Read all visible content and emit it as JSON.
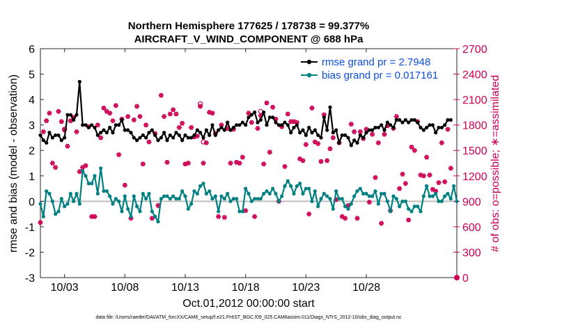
{
  "chart_data": {
    "type": "line",
    "title": "Northern Hemisphere 177625 / 178738 = 99.377%",
    "subtitle": "AIRCRAFT_V_WIND_COMPONENT @ 688 hPa",
    "xlabel": "Oct.01,2012 00:00:00 start",
    "ylabel": "rmse and bias (model - observation)",
    "y2label": "# of obs: o=possible; ∗=assimilated",
    "footnote": "data file: /Users/raeder/DAI/ATM_forcXX/CAM6_setup/f.e21.FHIST_BGC.f09_025.CAM6assim.011/Diags_NTrS_2012-10/obs_diag_output.nc",
    "xlim": [
      1.0,
      35.5
    ],
    "ylim": [
      -3,
      6
    ],
    "y2lim": [
      0,
      2700
    ],
    "x_ticks": [
      3,
      8,
      13,
      18,
      23,
      28
    ],
    "x_tick_labels": [
      "10/03",
      "10/08",
      "10/13",
      "10/18",
      "10/23",
      "10/28"
    ],
    "y_ticks": [
      -3,
      -2,
      -1,
      0,
      1,
      2,
      3,
      4,
      5,
      6
    ],
    "y2_ticks": [
      0,
      300,
      600,
      900,
      1200,
      1500,
      1800,
      2100,
      2400,
      2700
    ],
    "colors": {
      "rmse": "#000000",
      "bias": "#008080",
      "obs": "#cc0052",
      "zero": "#bdbdbd"
    },
    "series": [
      {
        "name": "rmse grand pr = 2.7948",
        "key": "rmse",
        "x_start": 1.0,
        "x_step": 0.25,
        "values": [
          2.6,
          2.4,
          2.3,
          2.7,
          2.5,
          2.6,
          2.6,
          2.4,
          2.5,
          3.4,
          3.4,
          3.2,
          3.4,
          4.7,
          3.0,
          3.0,
          2.9,
          3.0,
          2.9,
          2.6,
          2.7,
          2.8,
          2.7,
          2.9,
          2.7,
          3.0,
          3.0,
          3.2,
          2.8,
          2.8,
          2.7,
          2.5,
          2.4,
          2.5,
          2.6,
          2.5,
          2.7,
          2.8,
          2.6,
          2.4,
          2.5,
          2.7,
          2.4,
          2.6,
          2.5,
          2.7,
          2.6,
          2.4,
          2.6,
          2.5,
          2.5,
          2.6,
          2.8,
          2.7,
          2.5,
          2.8,
          2.6,
          3.0,
          2.6,
          2.8,
          2.9,
          2.8,
          3.1,
          2.8,
          2.9,
          3.0,
          3.0,
          3.1,
          3.0,
          3.3,
          3.4,
          3.5,
          3.1,
          3.2,
          3.5,
          3.0,
          3.3,
          3.3,
          3.1,
          3.0,
          3.0,
          3.1,
          3.0,
          2.7,
          2.9,
          3.0,
          2.7,
          2.8,
          2.6,
          2.9,
          2.7,
          2.8,
          2.6,
          2.5,
          3.3,
          2.8,
          3.7,
          2.7,
          2.8,
          2.3,
          2.6,
          2.6,
          2.5,
          2.2,
          2.4,
          2.3,
          2.6,
          2.5,
          2.7,
          2.8,
          2.8,
          2.9,
          2.9,
          3.0,
          2.8,
          3.1,
          3.0,
          2.9,
          3.2,
          3.2,
          3.1,
          3.2,
          3.1,
          3.2,
          3.2,
          3.1,
          2.9,
          2.8,
          2.9,
          3.0,
          3.0,
          2.7,
          2.9,
          2.9,
          3.0,
          3.2,
          3.2
        ]
      },
      {
        "name": "bias grand pr = 0.017161",
        "key": "bias",
        "x_start": 1.0,
        "x_step": 0.25,
        "values": [
          -0.1,
          -0.6,
          0.4,
          0.3,
          0.0,
          -0.5,
          -0.4,
          0.1,
          -0.2,
          -0.1,
          0.3,
          0.0,
          0.3,
          -0.1,
          1.2,
          1.0,
          0.7,
          0.7,
          1.0,
          0.3,
          1.3,
          0.4,
          0.4,
          0.2,
          -0.1,
          0.1,
          0.0,
          -0.4,
          0.2,
          -0.3,
          -0.6,
          0.2,
          -0.2,
          -0.4,
          0.3,
          0.1,
          0.3,
          -0.4,
          -0.6,
          -0.8,
          0.1,
          0.2,
          0.2,
          0.1,
          0.2,
          0.1,
          0.1,
          0.4,
          0.2,
          -0.3,
          -0.1,
          0.4,
          0.3,
          0.6,
          0.7,
          0.3,
          0.4,
          0.1,
          0.2,
          -0.4,
          0.2,
          0.1,
          0.3,
          0.0,
          0.1,
          0.1,
          -0.4,
          -0.4,
          0.5,
          0.3,
          0.0,
          0.1,
          0.1,
          0.1,
          0.3,
          0.4,
          0.3,
          0.5,
          0.3,
          0.0,
          0.2,
          0.6,
          0.8,
          0.6,
          0.3,
          0.6,
          0.7,
          0.3,
          0.5,
          0.5,
          0.0,
          0.4,
          -0.2,
          0.1,
          0.3,
          0.2,
          0.1,
          -0.3,
          0.4,
          0.1,
          0.1,
          -0.2,
          -0.3,
          -0.1,
          0.2,
          0.4,
          0.5,
          0.3,
          0.3,
          0.2,
          0.2,
          0.4,
          -0.1,
          0.3,
          0.3,
          0.0,
          -0.4,
          0.2,
          0.1,
          -0.2,
          0.0,
          0.0,
          -0.3,
          -0.4,
          -0.2,
          -0.2,
          -0.4,
          0.2,
          0.6,
          0.2,
          0.2,
          0.3,
          0.0,
          0.0,
          0.2,
          0.3,
          0.1,
          0.6,
          0.0
        ]
      },
      {
        "name": "# of obs assimilated",
        "key": "obs",
        "x_start": 1.0,
        "x_step": 0.25,
        "values": [
          650,
          1720,
          1850,
          1940,
          1350,
          1300,
          1960,
          1840,
          1740,
          1550,
          1850,
          1890,
          1720,
          1250,
          1300,
          1320,
          1780,
          720,
          720,
          1800,
          1650,
          2000,
          1960,
          1940,
          1850,
          2030,
          1450,
          1870,
          1090,
          1900,
          700,
          1860,
          2020,
          1900,
          1340,
          1800,
          1600,
          700,
          1700,
          850,
          2150,
          1900,
          1360,
          1930,
          1980,
          1930,
          1770,
          1820,
          1340,
          1350,
          1770,
          1660,
          1670,
          2020,
          1350,
          1590,
          1950,
          1940,
          1700,
          720,
          1800,
          710,
          1760,
          1350,
          1750,
          1360,
          1350,
          1420,
          790,
          1940,
          1830,
          720,
          1760,
          1910,
          1340,
          2060,
          1480,
          2010,
          1870,
          900,
          1780,
          1310,
          1930,
          1840,
          1840,
          1830,
          1400,
          1380,
          1570,
          750,
          2000,
          1600,
          1580,
          1370,
          1920,
          1380,
          1520,
          1650,
          920,
          1590,
          720,
          700,
          850,
          1810,
          1720,
          700,
          1720,
          1640,
          1750,
          890,
          1690,
          1180,
          1590,
          640,
          1690,
          1790,
          790,
          1760,
          1900,
          1050,
          1220,
          1110,
          680,
          1540,
          1500,
          1840,
          1210,
          1200,
          1420,
          1210,
          1040,
          1020,
          1120,
          1590,
          1130,
          1750,
          1290
        ]
      }
    ],
    "obs_possible_extras": [
      [
        3.0,
        1750
      ],
      [
        19.25,
        1960
      ],
      [
        14.25,
        2050
      ],
      [
        14.5,
        1600
      ]
    ],
    "legend": {
      "location": "top-right"
    }
  }
}
